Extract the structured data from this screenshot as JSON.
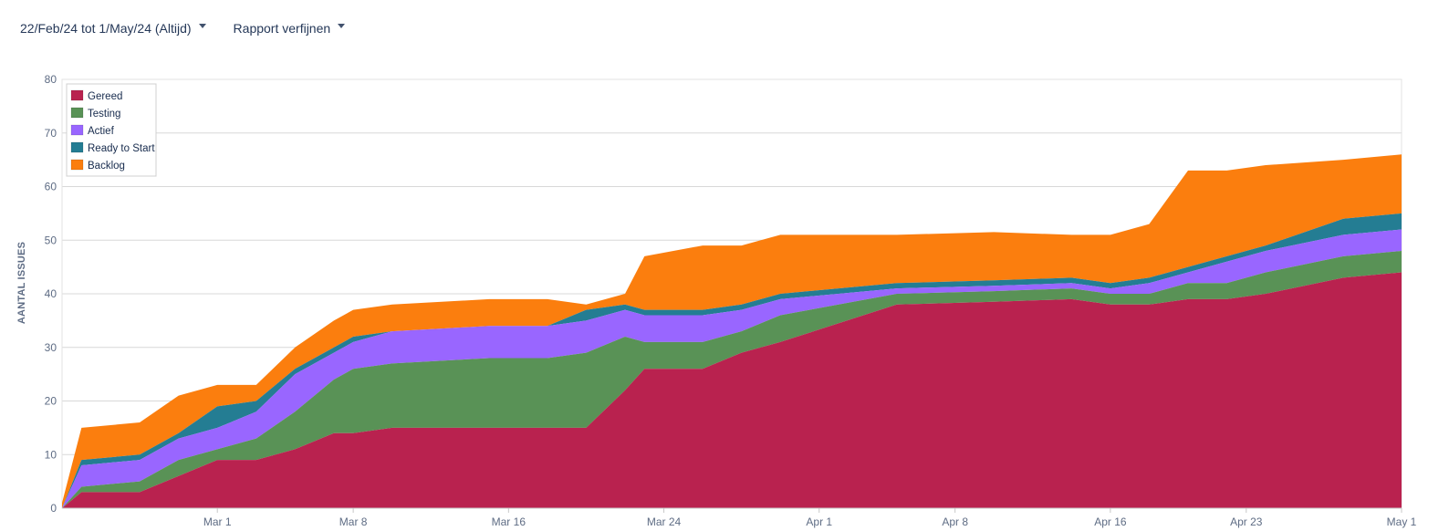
{
  "toolbar": {
    "date_range_label": "22/Feb/24 tot 1/May/24 (Altijd)",
    "refine_label": "Rapport verfijnen"
  },
  "colors": {
    "Gereed": "#b9224f",
    "Testing": "#599256",
    "Actief": "#9966ff",
    "Ready to Start": "#247d93",
    "Backlog": "#fb7e0e"
  },
  "chart_data": {
    "type": "area",
    "stacked": true,
    "ylabel": "AANTAL ISSUES",
    "xlabel": "",
    "ylim": [
      0,
      80
    ],
    "yticks": [
      0,
      10,
      20,
      30,
      40,
      50,
      60,
      70,
      80
    ],
    "xlim": [
      "2024-02-22",
      "2024-05-01"
    ],
    "xticks": [
      {
        "date": "2024-03-01",
        "label": "Mar 1"
      },
      {
        "date": "2024-03-08",
        "label": "Mar 8"
      },
      {
        "date": "2024-03-16",
        "label": "Mar 16"
      },
      {
        "date": "2024-03-24",
        "label": "Mar 24"
      },
      {
        "date": "2024-04-01",
        "label": "Apr 1"
      },
      {
        "date": "2024-04-08",
        "label": "Apr 8"
      },
      {
        "date": "2024-04-16",
        "label": "Apr 16"
      },
      {
        "date": "2024-04-23",
        "label": "Apr 23"
      },
      {
        "date": "2024-05-01",
        "label": "May 1"
      }
    ],
    "grid": true,
    "legend_position": "top-left",
    "x": [
      "2024-02-22",
      "2024-02-23",
      "2024-02-26",
      "2024-02-28",
      "2024-03-01",
      "2024-03-03",
      "2024-03-05",
      "2024-03-07",
      "2024-03-08",
      "2024-03-10",
      "2024-03-15",
      "2024-03-18",
      "2024-03-20",
      "2024-03-22",
      "2024-03-23",
      "2024-03-26",
      "2024-03-28",
      "2024-03-30",
      "2024-04-05",
      "2024-04-10",
      "2024-04-14",
      "2024-04-16",
      "2024-04-18",
      "2024-04-20",
      "2024-04-22",
      "2024-04-24",
      "2024-04-28",
      "2024-05-01"
    ],
    "series": [
      {
        "name": "Gereed",
        "values": [
          0,
          3,
          3,
          6,
          9,
          9,
          11,
          14,
          14,
          15,
          15,
          15,
          15,
          22,
          26,
          26,
          29,
          31,
          38,
          38.5,
          39,
          38,
          38,
          39,
          39,
          40,
          43,
          44
        ]
      },
      {
        "name": "Testing",
        "values": [
          0,
          1,
          2,
          3,
          2,
          4,
          7,
          10,
          12,
          12,
          13,
          13,
          14,
          10,
          5,
          5,
          4,
          5,
          2,
          2,
          2,
          2,
          2,
          3,
          3,
          4,
          4,
          4
        ]
      },
      {
        "name": "Actief",
        "values": [
          0,
          4,
          4,
          4,
          4,
          5,
          7,
          5,
          5,
          6,
          6,
          6,
          6,
          5,
          5,
          5,
          4,
          3,
          1,
          1,
          1,
          1,
          2,
          2,
          4,
          4,
          4,
          4
        ]
      },
      {
        "name": "Ready to Start",
        "values": [
          0,
          1,
          1,
          1,
          4,
          2,
          1,
          1,
          1,
          0,
          0,
          0,
          2,
          1,
          1,
          1,
          1,
          1,
          1,
          1,
          1,
          1,
          1,
          1,
          1,
          1,
          3,
          3
        ]
      },
      {
        "name": "Backlog",
        "values": [
          1,
          6,
          6,
          7,
          4,
          3,
          4,
          5,
          5,
          5,
          5,
          5,
          1,
          2,
          10,
          12,
          11,
          11,
          9,
          9,
          8,
          9,
          10,
          18,
          16,
          15,
          11,
          11
        ]
      }
    ]
  }
}
